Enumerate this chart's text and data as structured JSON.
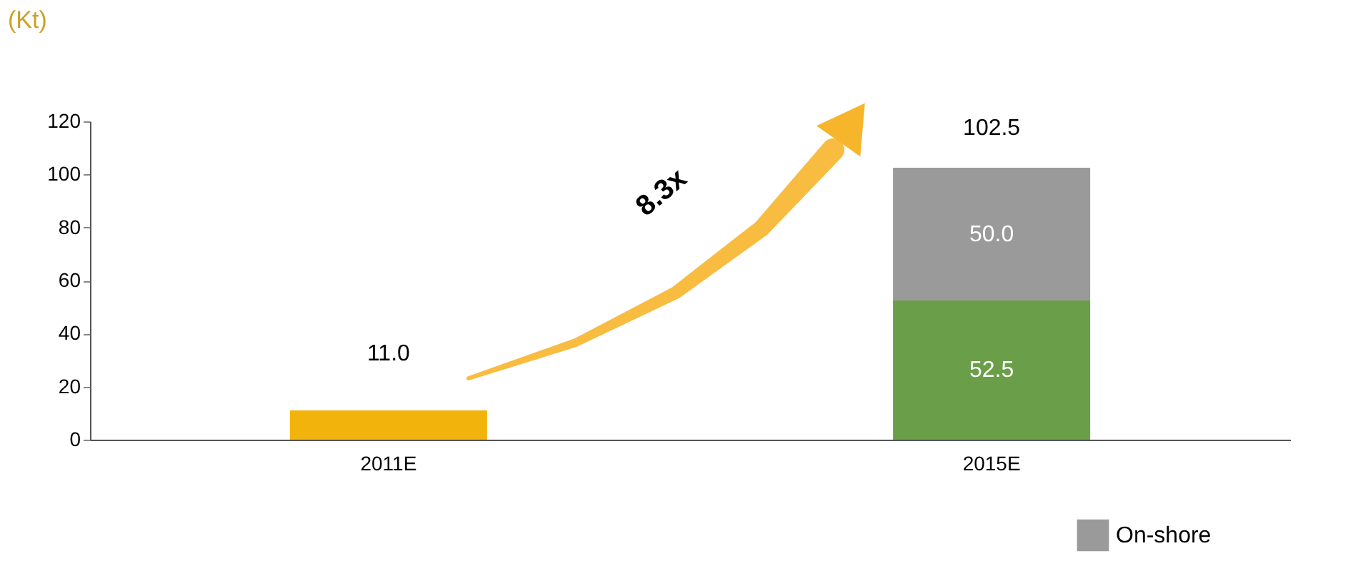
{
  "chart_data": {
    "type": "bar",
    "stacked": true,
    "ylabel": "(Kt)",
    "categories": [
      "2011E",
      "2015E"
    ],
    "series": [
      {
        "color": "#f2b40c",
        "values": [
          11.0,
          null
        ],
        "value_labels": [
          "11.0",
          null
        ]
      },
      {
        "color": "#6a9e48",
        "values": [
          null,
          52.5
        ],
        "value_labels": [
          null,
          "52.5"
        ]
      },
      {
        "name": "On-shore",
        "color": "#9a9a9a",
        "values": [
          null,
          50.0
        ],
        "value_labels": [
          null,
          "50.0"
        ]
      }
    ],
    "totals": [
      null,
      "102.5"
    ],
    "ylim": [
      0,
      120
    ],
    "yticks": [
      0,
      20,
      40,
      60,
      80,
      100,
      120
    ],
    "annotations": [
      "8.3x"
    ],
    "grid": false,
    "legend": "bottom right"
  }
}
